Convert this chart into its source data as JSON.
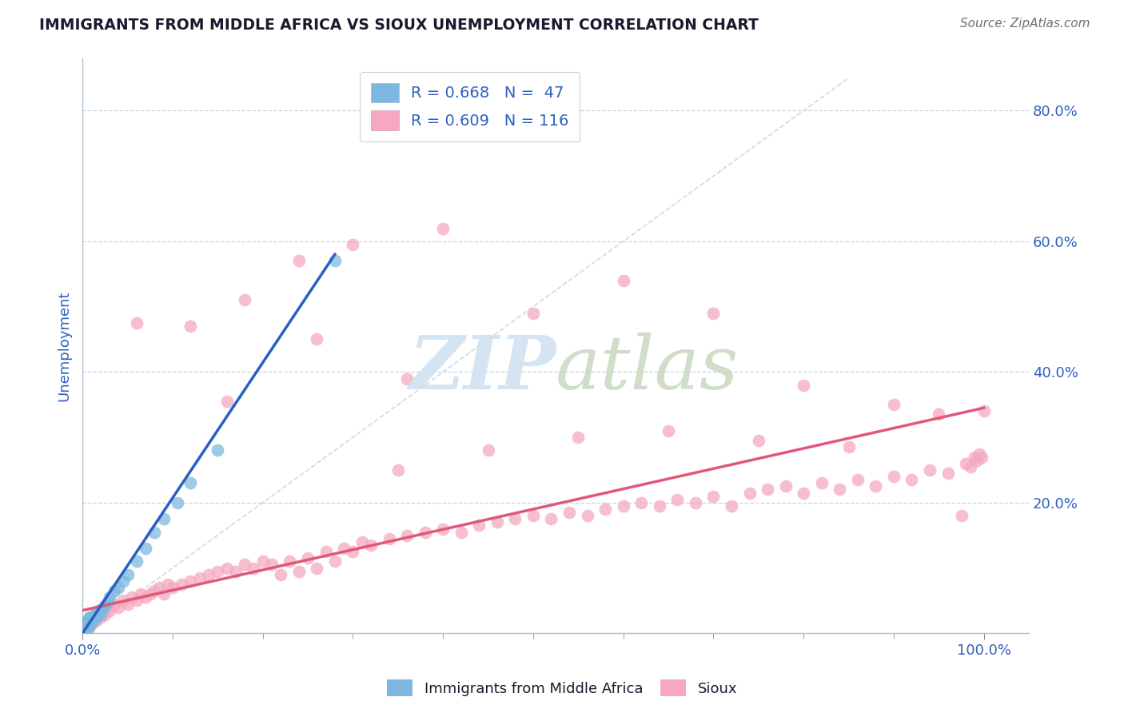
{
  "title": "IMMIGRANTS FROM MIDDLE AFRICA VS SIOUX UNEMPLOYMENT CORRELATION CHART",
  "source": "Source: ZipAtlas.com",
  "ylabel": "Unemployment",
  "blue_scatter_x": [
    0.001,
    0.001,
    0.001,
    0.001,
    0.002,
    0.002,
    0.002,
    0.003,
    0.003,
    0.003,
    0.004,
    0.004,
    0.005,
    0.005,
    0.006,
    0.006,
    0.007,
    0.007,
    0.008,
    0.008,
    0.009,
    0.01,
    0.01,
    0.011,
    0.012,
    0.013,
    0.014,
    0.015,
    0.016,
    0.018,
    0.02,
    0.022,
    0.025,
    0.028,
    0.03,
    0.035,
    0.04,
    0.045,
    0.05,
    0.06,
    0.07,
    0.08,
    0.09,
    0.105,
    0.12,
    0.15,
    0.28
  ],
  "blue_scatter_y": [
    0.005,
    0.008,
    0.01,
    0.012,
    0.005,
    0.01,
    0.015,
    0.008,
    0.012,
    0.018,
    0.01,
    0.015,
    0.008,
    0.018,
    0.01,
    0.02,
    0.012,
    0.022,
    0.015,
    0.025,
    0.018,
    0.015,
    0.025,
    0.02,
    0.022,
    0.025,
    0.028,
    0.03,
    0.025,
    0.035,
    0.03,
    0.038,
    0.042,
    0.048,
    0.055,
    0.065,
    0.07,
    0.08,
    0.09,
    0.11,
    0.13,
    0.155,
    0.175,
    0.2,
    0.23,
    0.28,
    0.57
  ],
  "pink_scatter_x": [
    0.001,
    0.002,
    0.003,
    0.004,
    0.005,
    0.006,
    0.007,
    0.008,
    0.009,
    0.01,
    0.012,
    0.014,
    0.016,
    0.018,
    0.02,
    0.022,
    0.025,
    0.028,
    0.03,
    0.035,
    0.04,
    0.045,
    0.05,
    0.055,
    0.06,
    0.065,
    0.07,
    0.075,
    0.08,
    0.085,
    0.09,
    0.095,
    0.1,
    0.11,
    0.12,
    0.13,
    0.14,
    0.15,
    0.16,
    0.17,
    0.18,
    0.19,
    0.2,
    0.21,
    0.22,
    0.23,
    0.24,
    0.25,
    0.26,
    0.27,
    0.28,
    0.29,
    0.3,
    0.31,
    0.32,
    0.34,
    0.36,
    0.38,
    0.4,
    0.42,
    0.44,
    0.46,
    0.48,
    0.5,
    0.52,
    0.54,
    0.56,
    0.58,
    0.6,
    0.62,
    0.64,
    0.66,
    0.68,
    0.7,
    0.72,
    0.74,
    0.76,
    0.78,
    0.8,
    0.82,
    0.84,
    0.86,
    0.88,
    0.9,
    0.92,
    0.94,
    0.96,
    0.98,
    0.985,
    0.99,
    0.992,
    0.995,
    0.998,
    1.0,
    0.35,
    0.45,
    0.55,
    0.65,
    0.75,
    0.85,
    0.95,
    0.975,
    0.12,
    0.18,
    0.24,
    0.3,
    0.4,
    0.5,
    0.6,
    0.7,
    0.8,
    0.9,
    0.06,
    0.16,
    0.26,
    0.36
  ],
  "pink_scatter_y": [
    0.008,
    0.012,
    0.008,
    0.015,
    0.01,
    0.018,
    0.008,
    0.015,
    0.012,
    0.02,
    0.018,
    0.025,
    0.02,
    0.03,
    0.025,
    0.035,
    0.028,
    0.04,
    0.035,
    0.045,
    0.04,
    0.05,
    0.045,
    0.055,
    0.05,
    0.06,
    0.055,
    0.06,
    0.065,
    0.07,
    0.06,
    0.075,
    0.07,
    0.075,
    0.08,
    0.085,
    0.09,
    0.095,
    0.1,
    0.095,
    0.105,
    0.1,
    0.11,
    0.105,
    0.09,
    0.11,
    0.095,
    0.115,
    0.1,
    0.125,
    0.11,
    0.13,
    0.125,
    0.14,
    0.135,
    0.145,
    0.15,
    0.155,
    0.16,
    0.155,
    0.165,
    0.17,
    0.175,
    0.18,
    0.175,
    0.185,
    0.18,
    0.19,
    0.195,
    0.2,
    0.195,
    0.205,
    0.2,
    0.21,
    0.195,
    0.215,
    0.22,
    0.225,
    0.215,
    0.23,
    0.22,
    0.235,
    0.225,
    0.24,
    0.235,
    0.25,
    0.245,
    0.26,
    0.255,
    0.27,
    0.265,
    0.275,
    0.27,
    0.34,
    0.25,
    0.28,
    0.3,
    0.31,
    0.295,
    0.285,
    0.335,
    0.18,
    0.47,
    0.51,
    0.57,
    0.595,
    0.62,
    0.49,
    0.54,
    0.49,
    0.38,
    0.35,
    0.475,
    0.355,
    0.45,
    0.39
  ],
  "blue_line_x": [
    0.0,
    0.28
  ],
  "blue_line_y": [
    0.0,
    0.58
  ],
  "pink_line_x": [
    0.0,
    1.0
  ],
  "pink_line_y": [
    0.035,
    0.345
  ],
  "ref_line_x": [
    0.0,
    0.85
  ],
  "ref_line_y": [
    0.0,
    0.85
  ],
  "blue_dot_color": "#7eb8e0",
  "pink_dot_color": "#f5a8c0",
  "blue_line_color": "#2860c0",
  "pink_line_color": "#e05878",
  "ref_line_color": "#c8d0d8",
  "background_color": "#ffffff",
  "grid_color": "#c8d4e4",
  "xlim": [
    0.0,
    1.05
  ],
  "ylim": [
    0.0,
    0.88
  ]
}
